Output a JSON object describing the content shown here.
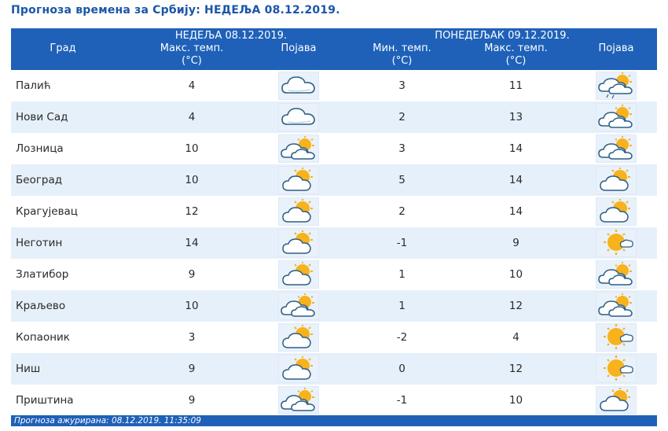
{
  "title": "Прогноза времена за Србију: НЕДЕЉА  08.12.2019.",
  "header": {
    "city": "Град",
    "day1_label": "НЕДЕЉА  08.12.2019.",
    "day1_max": "Макс. темп.",
    "unit": "(°C)",
    "day1_phenomenon": "Појава",
    "day2_label": "ПОНЕДЕЉАК  09.12.2019.",
    "day2_min": "Мин. темп.",
    "day2_max": "Макс. темп.",
    "day2_phenomenon": "Појава"
  },
  "rows": [
    {
      "city": "Палић",
      "d1_max": "4",
      "d1_icon": "cloudy-icon",
      "d2_min": "3",
      "d2_max": "11",
      "d2_icon": "sun-behind-clouds-drizzle-icon"
    },
    {
      "city": "Нови Сад",
      "d1_max": "4",
      "d1_icon": "cloudy-icon",
      "d2_min": "2",
      "d2_max": "13",
      "d2_icon": "sun-behind-clouds-icon"
    },
    {
      "city": "Лозница",
      "d1_max": "10",
      "d1_icon": "sun-behind-clouds-icon",
      "d2_min": "3",
      "d2_max": "14",
      "d2_icon": "sun-behind-clouds-icon"
    },
    {
      "city": "Београд",
      "d1_max": "10",
      "d1_icon": "partly-cloudy-icon",
      "d2_min": "5",
      "d2_max": "14",
      "d2_icon": "partly-cloudy-icon"
    },
    {
      "city": "Крагујевац",
      "d1_max": "12",
      "d1_icon": "partly-cloudy-icon",
      "d2_min": "2",
      "d2_max": "14",
      "d2_icon": "partly-cloudy-icon"
    },
    {
      "city": "Неготин",
      "d1_max": "14",
      "d1_icon": "partly-cloudy-icon",
      "d2_min": "-1",
      "d2_max": "9",
      "d2_icon": "mostly-sunny-icon"
    },
    {
      "city": "Златибор",
      "d1_max": "9",
      "d1_icon": "partly-cloudy-icon",
      "d2_min": "1",
      "d2_max": "10",
      "d2_icon": "sun-behind-clouds-icon"
    },
    {
      "city": "Краљево",
      "d1_max": "10",
      "d1_icon": "sun-behind-clouds-icon",
      "d2_min": "1",
      "d2_max": "12",
      "d2_icon": "sun-behind-clouds-icon"
    },
    {
      "city": "Копаоник",
      "d1_max": "3",
      "d1_icon": "partly-cloudy-icon",
      "d2_min": "-2",
      "d2_max": "4",
      "d2_icon": "mostly-sunny-icon"
    },
    {
      "city": "Ниш",
      "d1_max": "9",
      "d1_icon": "partly-cloudy-icon",
      "d2_min": "0",
      "d2_max": "12",
      "d2_icon": "mostly-sunny-icon"
    },
    {
      "city": "Приштина",
      "d1_max": "9",
      "d1_icon": "sun-behind-clouds-icon",
      "d2_min": "-1",
      "d2_max": "10",
      "d2_icon": "partly-cloudy-icon"
    }
  ],
  "footer": "Прогноза ажурирана:  08.12.2019. 11:35:09",
  "colors": {
    "header_bg": "#1f61b8",
    "title": "#1a56a8",
    "row_alt": "#e6f0fb",
    "sun": "#f7b21c",
    "cloud": "#ffffff",
    "cloud_stroke": "#2e5f86"
  }
}
